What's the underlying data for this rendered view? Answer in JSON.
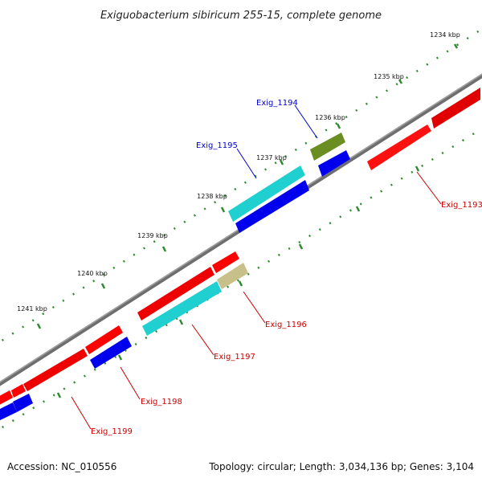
{
  "title": "Exiguobacterium sibiricum 255-15, complete genome",
  "footer": {
    "accession": "Accession: NC_010556",
    "topology": "Topology: circular; Length: 3,034,136 bp; Genes: 3,104"
  },
  "colors": {
    "background": "#ffffff",
    "backbone": "#8a8a8a",
    "tick": "#2e8b2e",
    "gene_red": "#ff0000",
    "gene_blue": "#0000ee",
    "gene_cyan": "#20d0d0",
    "gene_olive": "#6b8e23",
    "gene_khaki": "#c8c08a",
    "label_blue": "#0000cc",
    "label_red": "#cc0000"
  },
  "scale_labels": [
    "1234 kbp",
    "1235 kbp",
    "1236 kbp",
    "1237 kbp",
    "1238 kbp",
    "1239 kbp",
    "1240 kbp",
    "1241 kbp"
  ],
  "genes": [
    {
      "name": "Exig_1193",
      "color": "gene_red"
    },
    {
      "name": "Exig_1194",
      "color": "gene_olive"
    },
    {
      "name": "Exig_1195",
      "color": "gene_cyan"
    },
    {
      "name": "Exig_1196",
      "color": "gene_khaki"
    },
    {
      "name": "Exig_1197",
      "color": "gene_cyan"
    },
    {
      "name": "Exig_1198",
      "color": "gene_blue"
    },
    {
      "name": "Exig_1199",
      "color": "gene_blue"
    }
  ]
}
